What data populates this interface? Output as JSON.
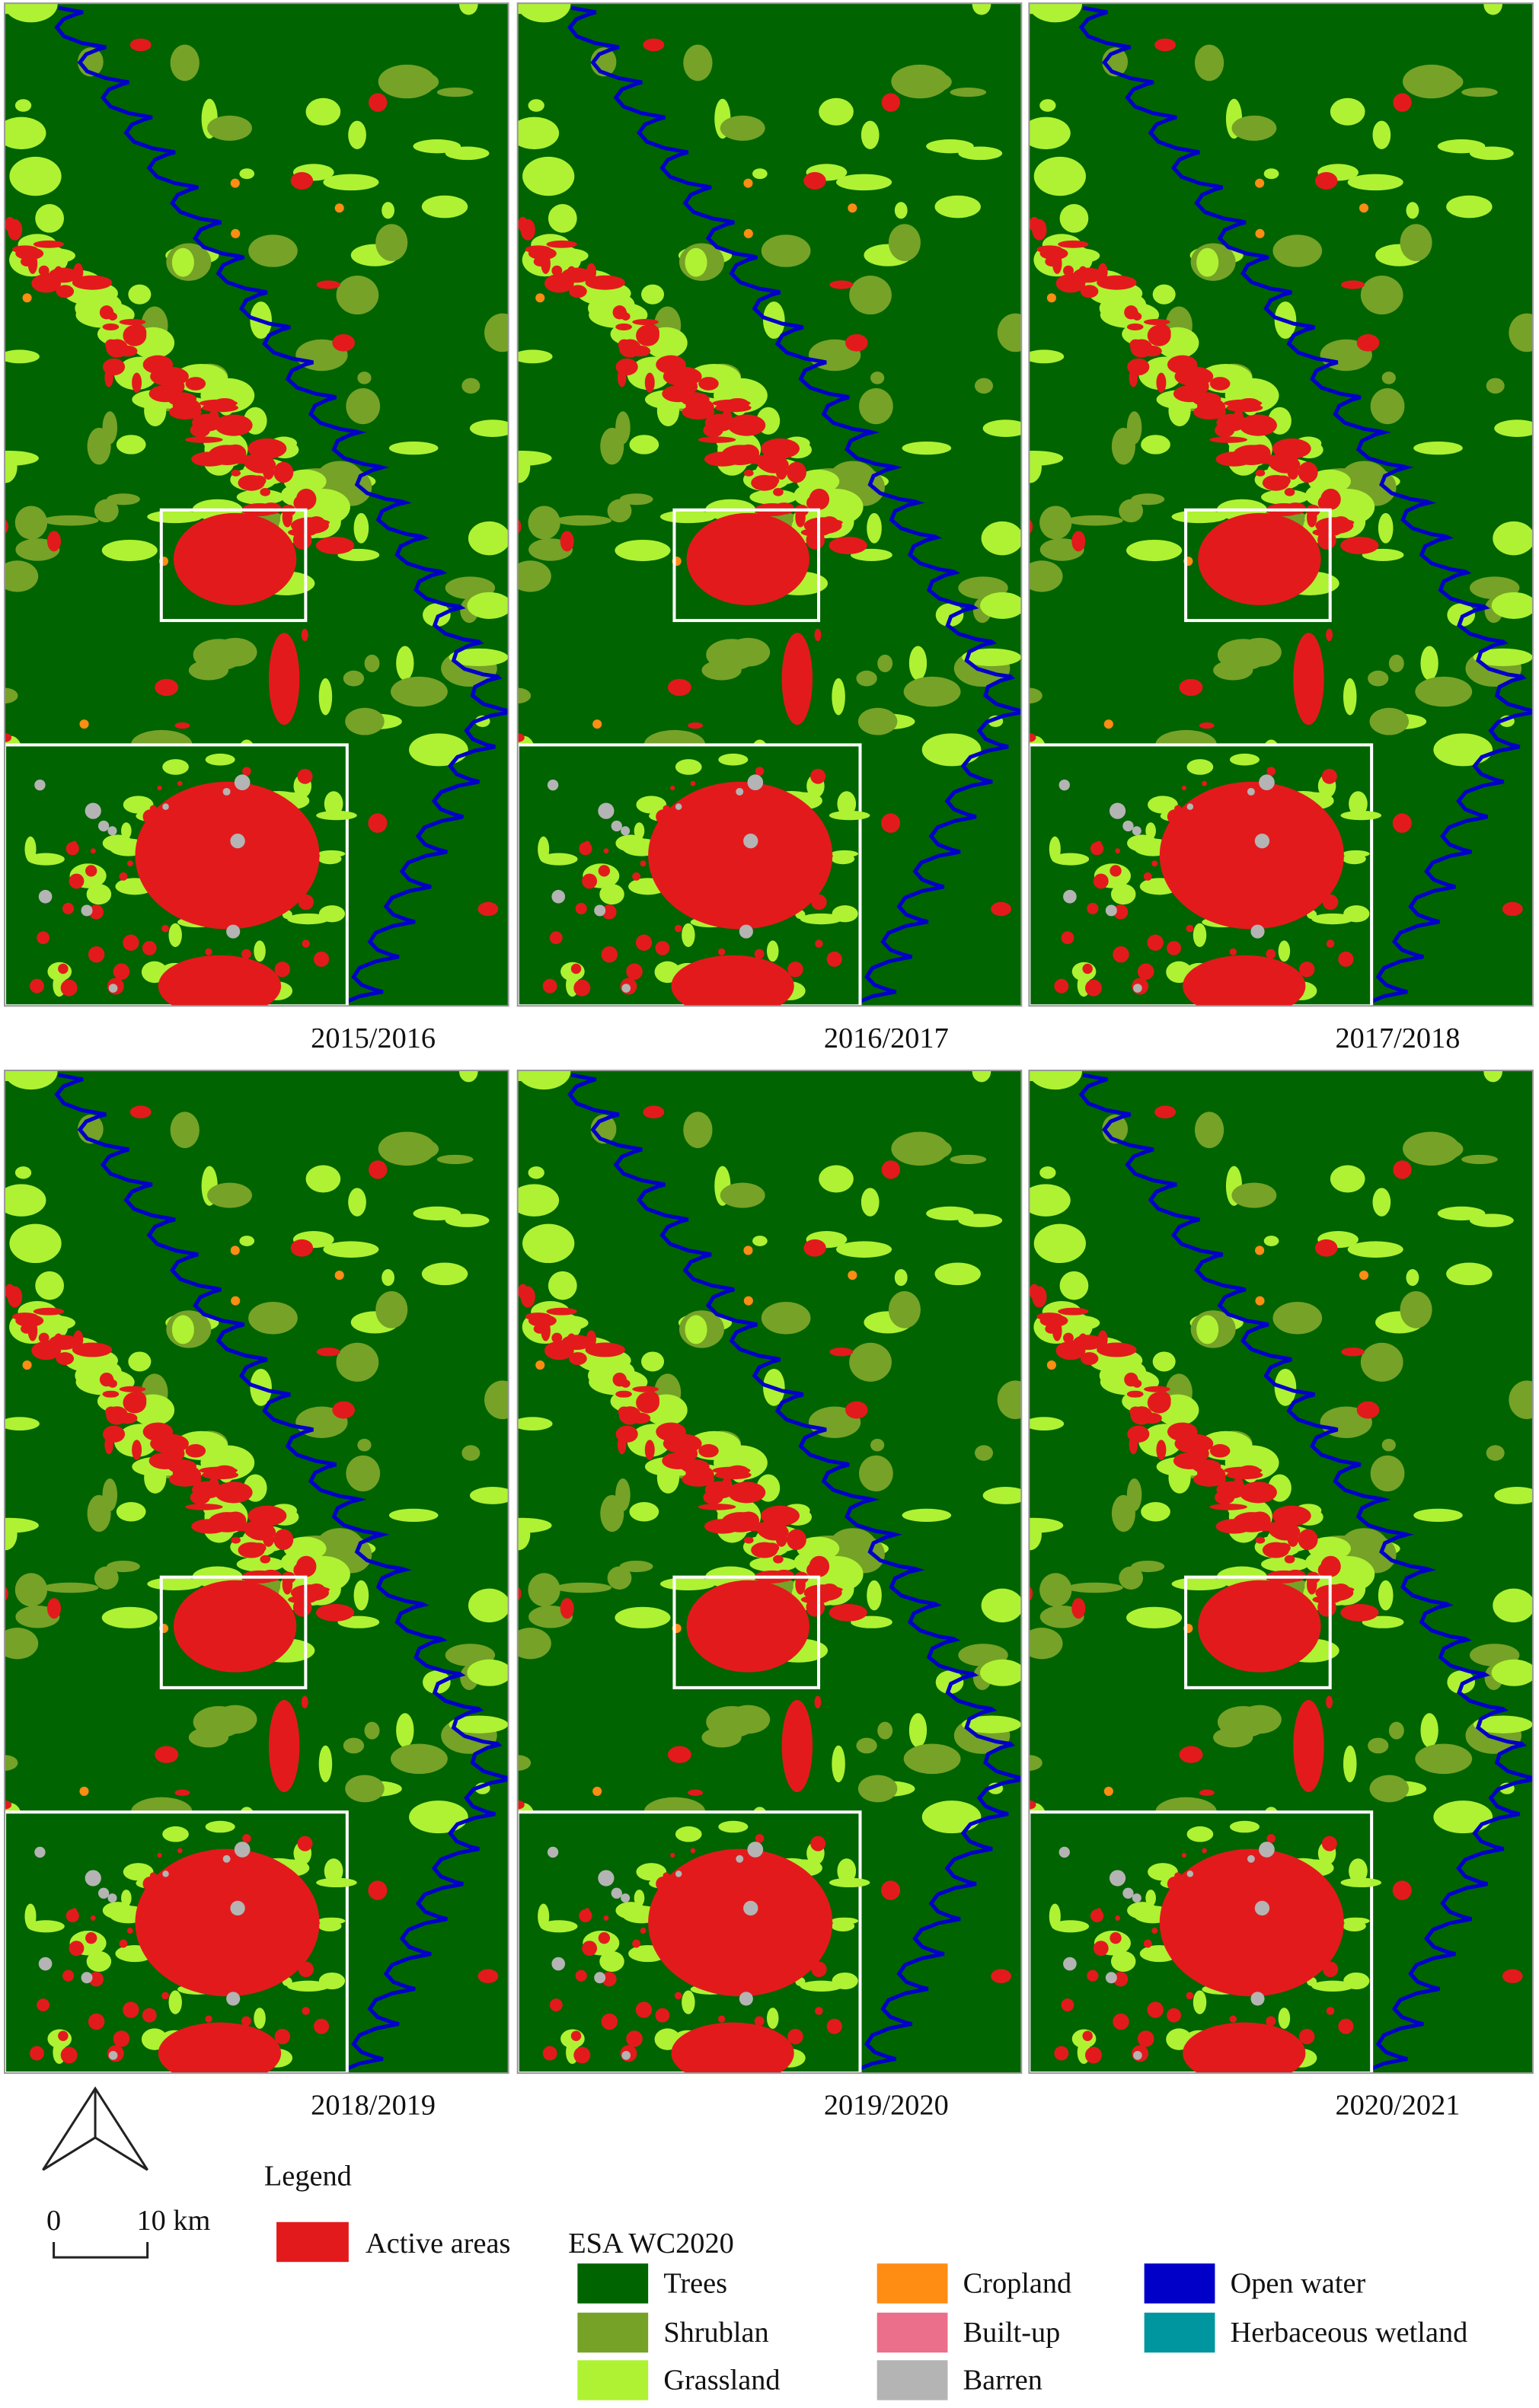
{
  "panels": [
    {
      "label": "2015/2016"
    },
    {
      "label": "2016/2017"
    },
    {
      "label": "2017/2018"
    },
    {
      "label": "2018/2019"
    },
    {
      "label": "2019/2020"
    },
    {
      "label": "2020/2021"
    }
  ],
  "legend": {
    "title": "Legend",
    "active_areas": {
      "label": "Active areas",
      "color": "#e31a1c"
    },
    "classification_title": "ESA WC2020",
    "classes": [
      {
        "label": "Trees",
        "color": "#006400"
      },
      {
        "label": "Shrublan",
        "color": "#76a227"
      },
      {
        "label": "Grassland",
        "color": "#aef233"
      },
      {
        "label": "Cropland",
        "color": "#ff8c13"
      },
      {
        "label": "Built-up",
        "color": "#eb6e8a"
      },
      {
        "label": "Barren",
        "color": "#b4b4b4"
      },
      {
        "label": "Open water",
        "color": "#0000c8"
      },
      {
        "label": "Herbaceous wetland",
        "color": "#0096a0"
      }
    ]
  },
  "scale_bar": {
    "start": "0",
    "end": "10 km"
  }
}
